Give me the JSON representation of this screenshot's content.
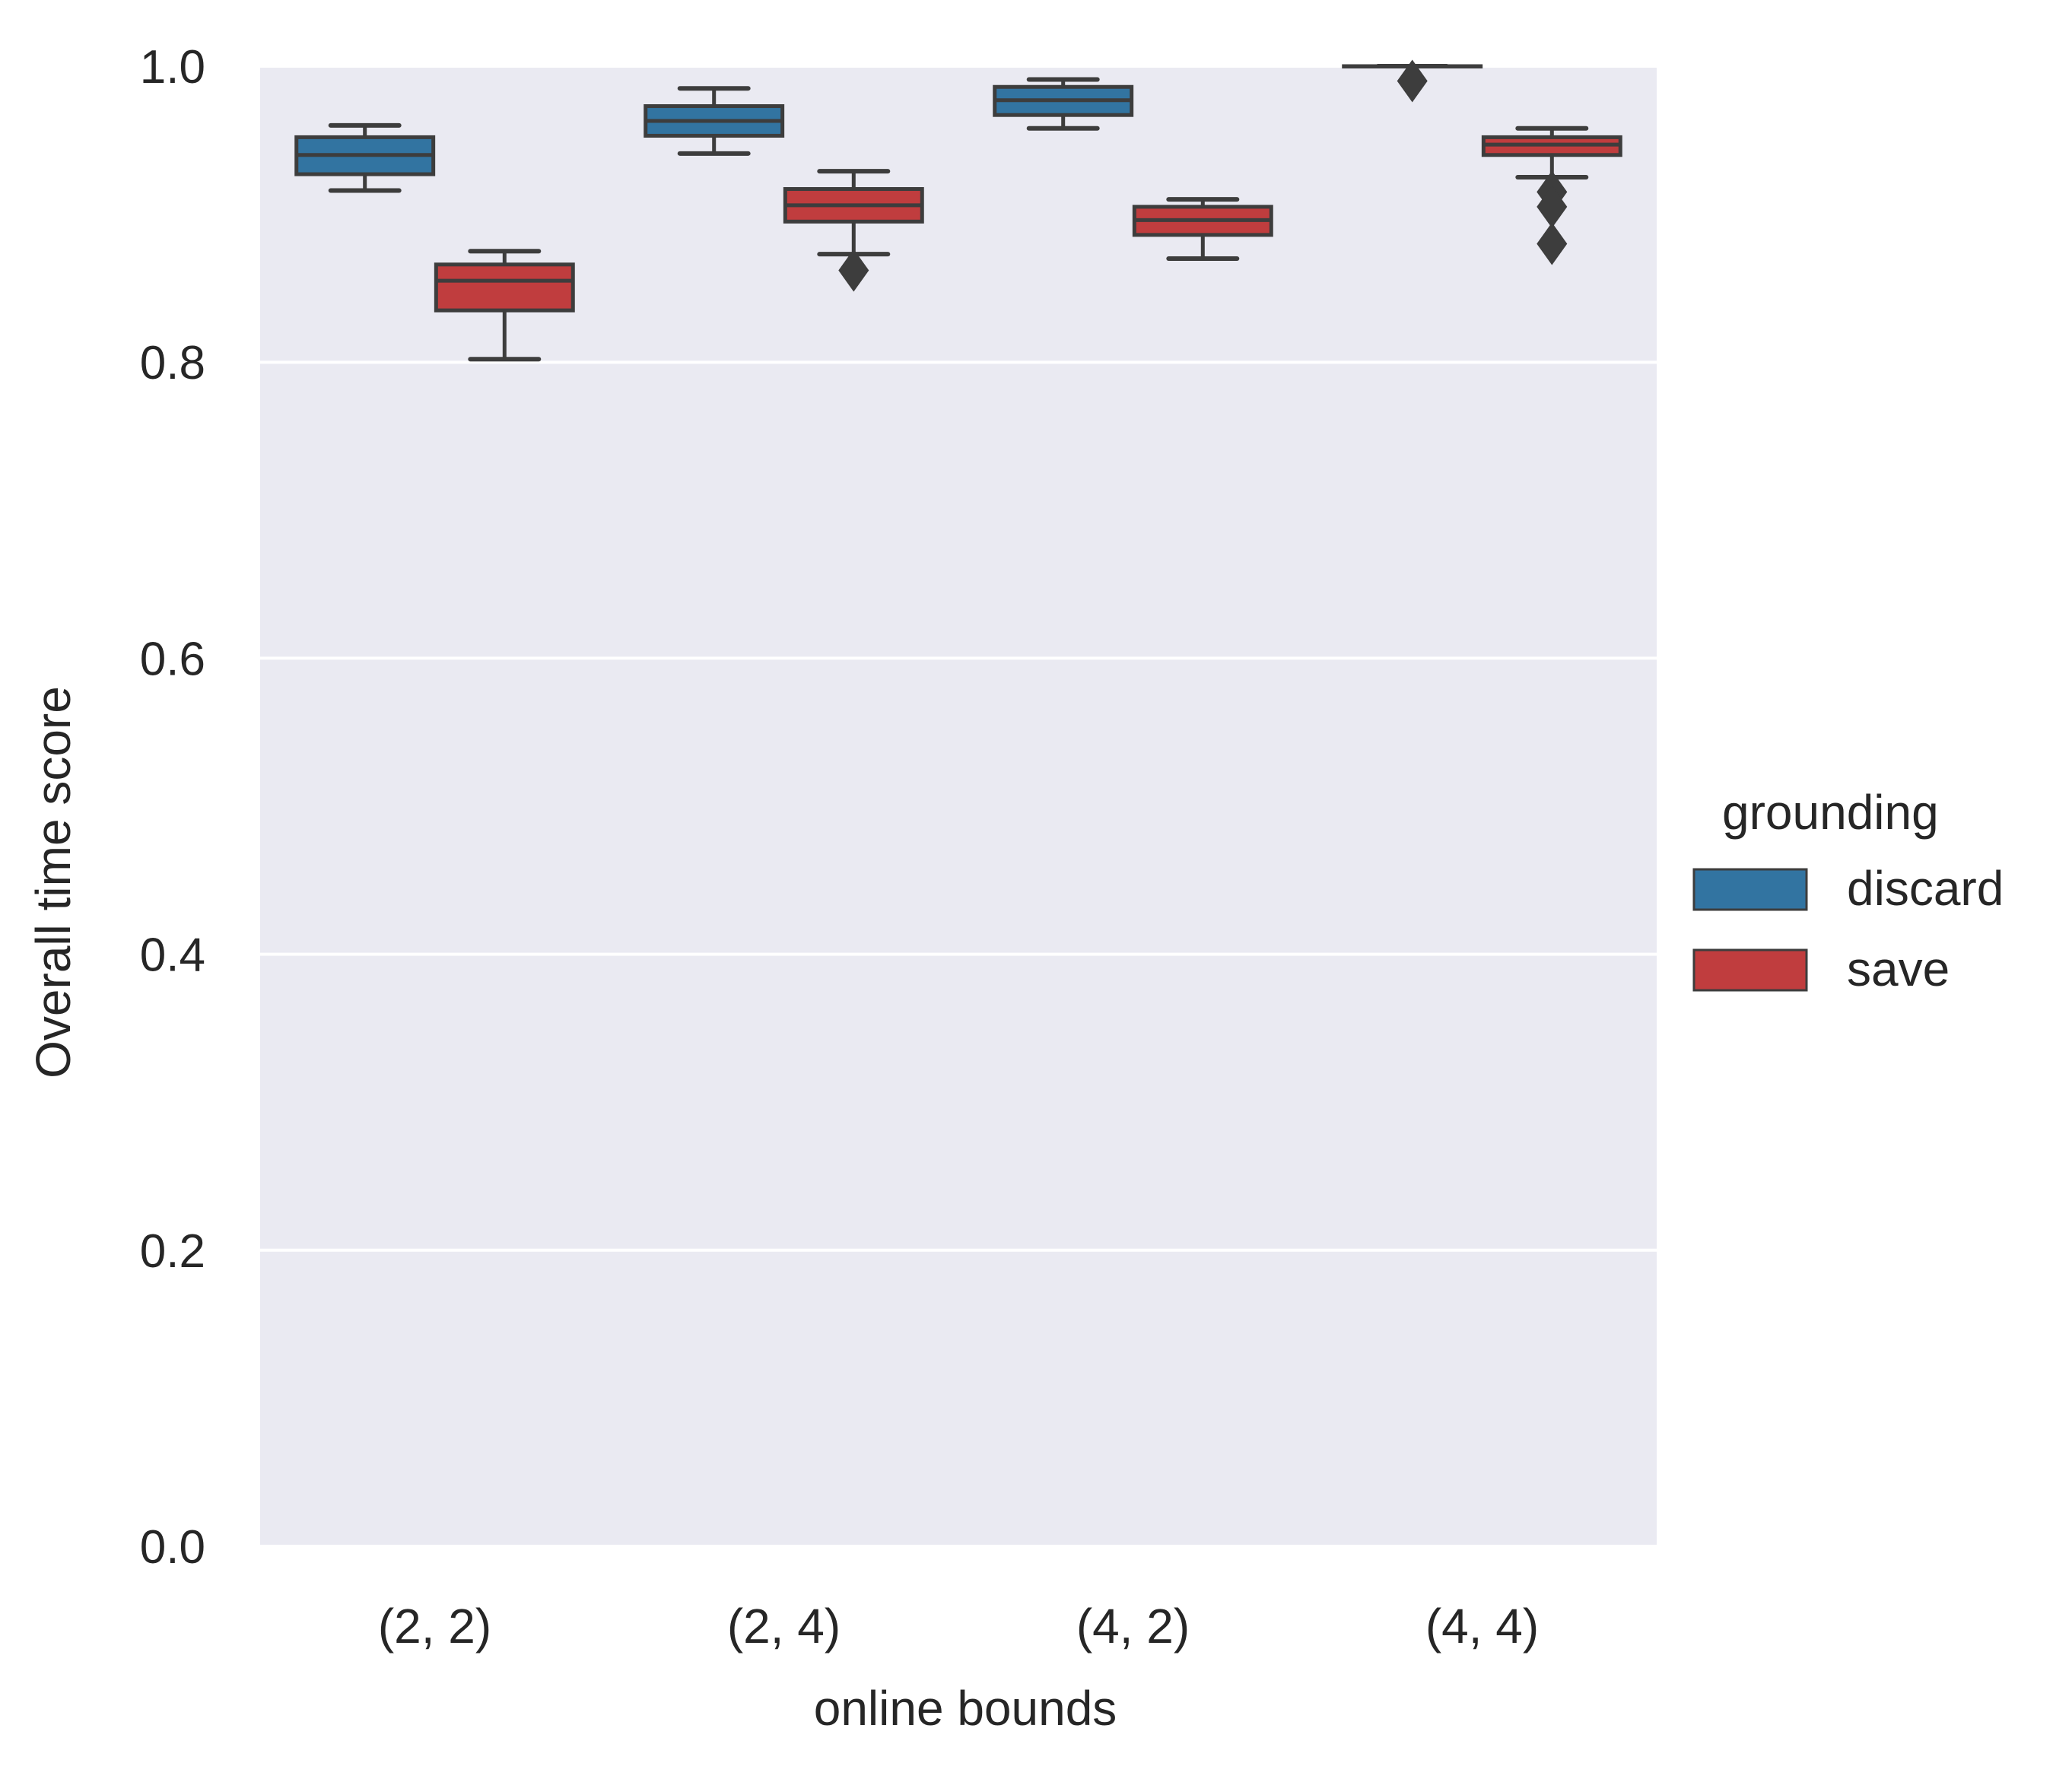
{
  "chart_data": {
    "type": "box",
    "title": "",
    "xlabel": "online bounds",
    "ylabel": "Overall time score",
    "ylim": [
      0,
      1
    ],
    "yticks": [
      0.0,
      0.2,
      0.4,
      0.6,
      0.8,
      1.0
    ],
    "ytick_labels": [
      "0.0",
      "0.2",
      "0.4",
      "0.6",
      "0.8",
      "1.0"
    ],
    "categories": [
      "(2, 2)",
      "(2, 4)",
      "(4, 2)",
      "(4, 4)"
    ],
    "grid": true,
    "legend": {
      "title": "grounding",
      "placement": "right",
      "entries": [
        "discard",
        "save"
      ]
    },
    "colors": {
      "discard": "#3274a1",
      "save": "#c03d3e",
      "box_edge": "#3d3d3d",
      "plot_bg": "#eaeaf2",
      "grid": "#ffffff"
    },
    "series": [
      {
        "name": "discard",
        "boxes": [
          {
            "category": "(2, 2)",
            "whisker_low": 0.916,
            "q1": 0.927,
            "median": 0.94,
            "q3": 0.952,
            "whisker_high": 0.96,
            "outliers": []
          },
          {
            "category": "(2, 4)",
            "whisker_low": 0.941,
            "q1": 0.953,
            "median": 0.963,
            "q3": 0.973,
            "whisker_high": 0.985,
            "outliers": []
          },
          {
            "category": "(4, 2)",
            "whisker_low": 0.958,
            "q1": 0.967,
            "median": 0.977,
            "q3": 0.986,
            "whisker_high": 0.991,
            "outliers": []
          },
          {
            "category": "(4, 4)",
            "whisker_low": 1.0,
            "q1": 1.0,
            "median": 1.0,
            "q3": 1.0,
            "whisker_high": 1.0,
            "outliers": [
              0.99
            ]
          }
        ]
      },
      {
        "name": "save",
        "boxes": [
          {
            "category": "(2, 2)",
            "whisker_low": 0.802,
            "q1": 0.835,
            "median": 0.855,
            "q3": 0.866,
            "whisker_high": 0.875,
            "outliers": []
          },
          {
            "category": "(2, 4)",
            "whisker_low": 0.873,
            "q1": 0.895,
            "median": 0.906,
            "q3": 0.917,
            "whisker_high": 0.929,
            "outliers": [
              0.862
            ]
          },
          {
            "category": "(4, 2)",
            "whisker_low": 0.87,
            "q1": 0.886,
            "median": 0.896,
            "q3": 0.905,
            "whisker_high": 0.91,
            "outliers": []
          },
          {
            "category": "(4, 4)",
            "whisker_low": 0.925,
            "q1": 0.94,
            "median": 0.947,
            "q3": 0.952,
            "whisker_high": 0.958,
            "outliers": [
              0.915,
              0.905,
              0.88
            ]
          }
        ]
      }
    ]
  }
}
